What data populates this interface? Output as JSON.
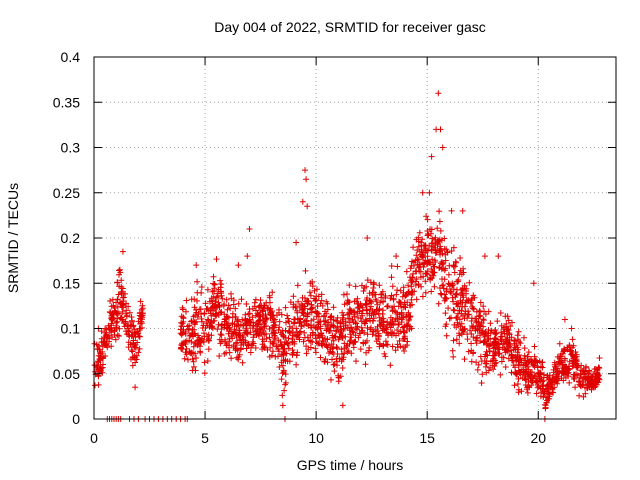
{
  "chart_data": {
    "type": "scatter",
    "title": "Day 004 of 2022, SRMTID for receiver gasc",
    "xlabel": "GPS time / hours",
    "ylabel": "SRMTID / TECUs",
    "xlim": [
      0,
      23.5
    ],
    "ylim": [
      0,
      0.4
    ],
    "grid": true,
    "legend": "none",
    "marker": "plus",
    "series_color": "#e00000",
    "xticks": [
      {
        "value": 0,
        "label": "0"
      },
      {
        "value": 5,
        "label": "5"
      },
      {
        "value": 10,
        "label": "10"
      },
      {
        "value": 15,
        "label": "15"
      },
      {
        "value": 20,
        "label": "20"
      }
    ],
    "yticks": [
      {
        "value": 0,
        "label": "0"
      },
      {
        "value": 0.05,
        "label": "0.05"
      },
      {
        "value": 0.1,
        "label": "0.1"
      },
      {
        "value": 0.15,
        "label": "0.15"
      },
      {
        "value": 0.2,
        "label": "0.2"
      },
      {
        "value": 0.25,
        "label": "0.25"
      },
      {
        "value": 0.3,
        "label": "0.3"
      },
      {
        "value": 0.35,
        "label": "0.35"
      },
      {
        "value": 0.4,
        "label": "0.4"
      }
    ],
    "envelope": [
      [
        0.0,
        0.02,
        0.1
      ],
      [
        0.3,
        0.02,
        0.1
      ],
      [
        0.5,
        0.06,
        0.11
      ],
      [
        1.2,
        0.08,
        0.18
      ],
      [
        1.5,
        0.06,
        0.14
      ],
      [
        1.9,
        0.04,
        0.12
      ],
      [
        2.2,
        0.09,
        0.14
      ],
      [
        3.9,
        0.05,
        0.14
      ],
      [
        4.5,
        0.03,
        0.16
      ],
      [
        5.0,
        0.04,
        0.17
      ],
      [
        5.5,
        0.07,
        0.18
      ],
      [
        6.0,
        0.05,
        0.16
      ],
      [
        6.5,
        0.04,
        0.14
      ],
      [
        7.0,
        0.06,
        0.14
      ],
      [
        7.5,
        0.07,
        0.15
      ],
      [
        8.0,
        0.05,
        0.16
      ],
      [
        8.5,
        0.0,
        0.14
      ],
      [
        9.0,
        0.04,
        0.16
      ],
      [
        9.5,
        0.06,
        0.17
      ],
      [
        10.0,
        0.06,
        0.16
      ],
      [
        10.5,
        0.04,
        0.14
      ],
      [
        11.0,
        0.01,
        0.15
      ],
      [
        11.5,
        0.05,
        0.16
      ],
      [
        12.0,
        0.05,
        0.16
      ],
      [
        12.5,
        0.06,
        0.18
      ],
      [
        13.0,
        0.05,
        0.17
      ],
      [
        13.5,
        0.05,
        0.18
      ],
      [
        14.0,
        0.05,
        0.17
      ],
      [
        14.5,
        0.12,
        0.22
      ],
      [
        15.0,
        0.12,
        0.24
      ],
      [
        15.5,
        0.1,
        0.26
      ],
      [
        16.0,
        0.05,
        0.23
      ],
      [
        16.5,
        0.06,
        0.2
      ],
      [
        17.0,
        0.04,
        0.17
      ],
      [
        17.5,
        0.03,
        0.15
      ],
      [
        18.0,
        0.03,
        0.12
      ],
      [
        18.5,
        0.05,
        0.14
      ],
      [
        19.0,
        0.02,
        0.11
      ],
      [
        19.5,
        0.01,
        0.1
      ],
      [
        20.0,
        0.01,
        0.09
      ],
      [
        20.3,
        0.0,
        0.06
      ],
      [
        20.6,
        0.02,
        0.06
      ],
      [
        21.0,
        0.03,
        0.09
      ],
      [
        21.5,
        0.03,
        0.1
      ],
      [
        22.0,
        0.02,
        0.07
      ],
      [
        22.5,
        0.02,
        0.06
      ],
      [
        22.8,
        0.03,
        0.07
      ]
    ],
    "zero_values": [
      [
        0.6,
        0
      ],
      [
        0.7,
        0
      ],
      [
        0.8,
        0
      ],
      [
        0.9,
        0
      ],
      [
        1.0,
        0
      ],
      [
        1.1,
        0
      ],
      [
        1.2,
        0
      ],
      [
        1.6,
        0
      ],
      [
        1.8,
        0
      ],
      [
        2.0,
        0
      ],
      [
        2.3,
        0
      ],
      [
        2.5,
        0
      ],
      [
        2.7,
        0
      ],
      [
        2.9,
        0
      ],
      [
        3.1,
        0
      ],
      [
        3.3,
        0
      ],
      [
        3.5,
        0
      ],
      [
        3.7,
        0
      ],
      [
        3.9,
        0
      ],
      [
        4.1,
        0
      ],
      [
        4.2,
        0
      ],
      [
        20.3,
        0
      ]
    ],
    "peak_values": [
      [
        0.2,
        0.1
      ],
      [
        0.5,
        0.1
      ],
      [
        1.3,
        0.185
      ],
      [
        1.45,
        0.12
      ],
      [
        1.85,
        0.035
      ],
      [
        2.1,
        0.13
      ],
      [
        4.6,
        0.17
      ],
      [
        6.5,
        0.17
      ],
      [
        6.9,
        0.18
      ],
      [
        7.0,
        0.21
      ],
      [
        8.5,
        0.015
      ],
      [
        8.6,
        0.0
      ],
      [
        9.1,
        0.195
      ],
      [
        9.5,
        0.275
      ],
      [
        9.55,
        0.265
      ],
      [
        9.6,
        0.235
      ],
      [
        9.4,
        0.24
      ],
      [
        11.2,
        0.015
      ],
      [
        12.3,
        0.2
      ],
      [
        13.6,
        0.18
      ],
      [
        14.8,
        0.25
      ],
      [
        15.1,
        0.25
      ],
      [
        15.2,
        0.29
      ],
      [
        15.4,
        0.32
      ],
      [
        15.5,
        0.36
      ],
      [
        15.6,
        0.32
      ],
      [
        15.7,
        0.3
      ],
      [
        16.1,
        0.23
      ],
      [
        16.6,
        0.23
      ],
      [
        17.6,
        0.18
      ],
      [
        18.2,
        0.18
      ],
      [
        19.6,
        0.035
      ],
      [
        19.8,
        0.15
      ],
      [
        21.2,
        0.11
      ],
      [
        21.5,
        0.1
      ]
    ]
  }
}
